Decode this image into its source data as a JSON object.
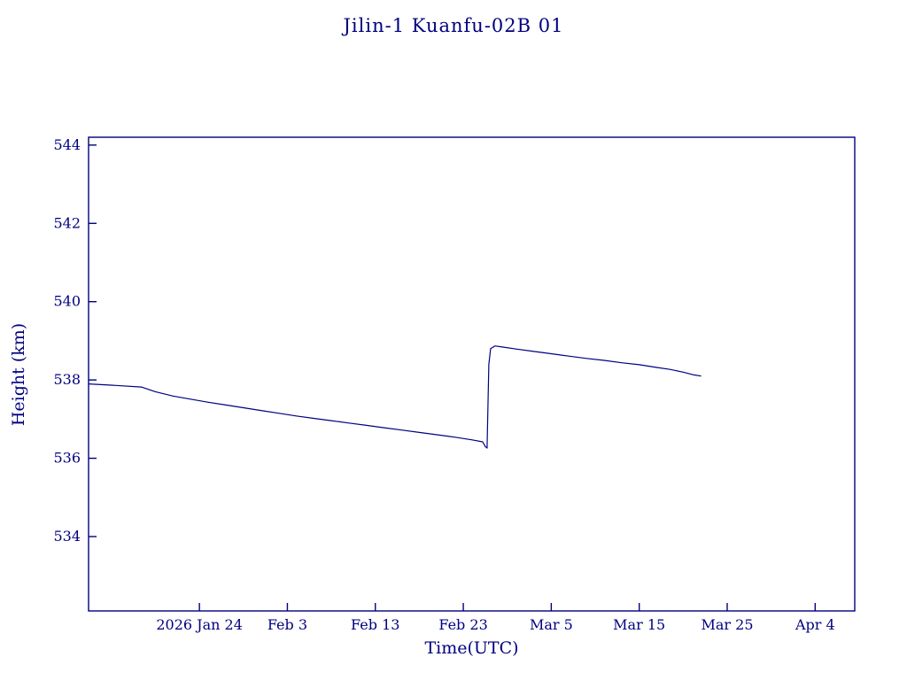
{
  "chart_data": {
    "type": "line",
    "title": "Jilin-1 Kuanfu-02B 01",
    "xlabel": "Time(UTC)",
    "ylabel": "Height (km)",
    "line_color": "#000080",
    "axis_color": "#000080",
    "grid": false,
    "legend": "none",
    "xlim_days_rel_jan24": [
      -12.6,
      74.5
    ],
    "ylim": [
      532.1,
      544.2
    ],
    "x_ticks": [
      {
        "day": 0,
        "label": "2026 Jan 24"
      },
      {
        "day": 10,
        "label": "Feb 3"
      },
      {
        "day": 20,
        "label": "Feb 13"
      },
      {
        "day": 30,
        "label": "Feb 23"
      },
      {
        "day": 40,
        "label": "Mar 5"
      },
      {
        "day": 50,
        "label": "Mar 15"
      },
      {
        "day": 60,
        "label": "Mar 25"
      },
      {
        "day": 70,
        "label": "Apr 4"
      }
    ],
    "y_ticks": [
      534,
      536,
      538,
      540,
      542,
      544
    ],
    "series": [
      {
        "name": "height_km",
        "points": [
          [
            -12.6,
            537.9
          ],
          [
            -9.5,
            537.86
          ],
          [
            -6.6,
            537.82
          ],
          [
            -5.0,
            537.7
          ],
          [
            -3.0,
            537.59
          ],
          [
            -1.0,
            537.51
          ],
          [
            1.0,
            537.43
          ],
          [
            3.0,
            537.36
          ],
          [
            5.0,
            537.29
          ],
          [
            7.0,
            537.22
          ],
          [
            9.0,
            537.15
          ],
          [
            11.0,
            537.08
          ],
          [
            13.0,
            537.02
          ],
          [
            15.0,
            536.96
          ],
          [
            17.0,
            536.9
          ],
          [
            19.0,
            536.84
          ],
          [
            21.0,
            536.78
          ],
          [
            23.0,
            536.72
          ],
          [
            25.0,
            536.66
          ],
          [
            27.0,
            536.6
          ],
          [
            29.0,
            536.54
          ],
          [
            31.0,
            536.47
          ],
          [
            32.2,
            536.42
          ],
          [
            32.5,
            536.3
          ],
          [
            32.7,
            536.26
          ],
          [
            32.9,
            538.4
          ],
          [
            33.1,
            538.8
          ],
          [
            33.6,
            538.87
          ],
          [
            34.5,
            538.84
          ],
          [
            36.0,
            538.79
          ],
          [
            38.0,
            538.73
          ],
          [
            40.0,
            538.67
          ],
          [
            42.0,
            538.61
          ],
          [
            44.0,
            538.55
          ],
          [
            46.0,
            538.5
          ],
          [
            48.0,
            538.44
          ],
          [
            50.0,
            538.39
          ],
          [
            52.0,
            538.32
          ],
          [
            53.5,
            538.27
          ],
          [
            55.0,
            538.2
          ],
          [
            56.2,
            538.13
          ],
          [
            57.0,
            538.1
          ]
        ]
      }
    ]
  }
}
